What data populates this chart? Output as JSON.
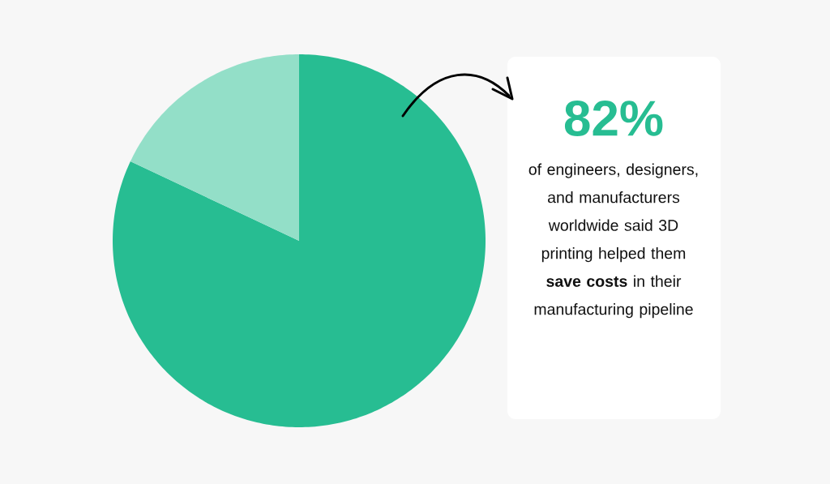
{
  "chart_data": {
    "type": "pie",
    "categories": [
      null,
      null
    ],
    "values": [
      82,
      18
    ],
    "colors": [
      "#27bd92",
      "#93dfc8"
    ],
    "annotations": [
      "82%",
      "of engineers, designers, and manufacturers worldwide said 3D printing helped them **save costs** in their manufacturing pipeline"
    ]
  }
}
